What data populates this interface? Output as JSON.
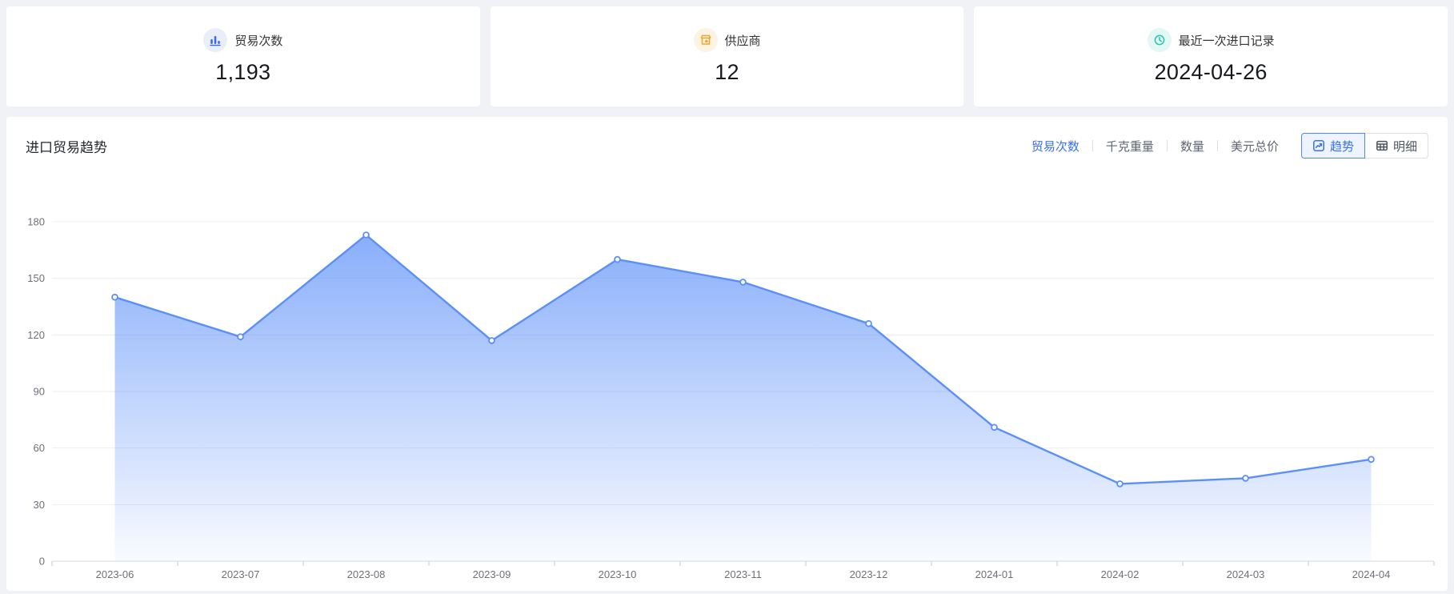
{
  "cards": [
    {
      "icon": "bar-chart-icon",
      "label": "贸易次数",
      "value": "1,193"
    },
    {
      "icon": "store-icon",
      "label": "供应商",
      "value": "12"
    },
    {
      "icon": "clock-icon",
      "label": "最近一次进口记录",
      "value": "2024-04-26"
    }
  ],
  "chart_panel": {
    "title": "进口贸易趋势",
    "metric_tabs": [
      {
        "label": "贸易次数",
        "active": true
      },
      {
        "label": "千克重量",
        "active": false
      },
      {
        "label": "数量",
        "active": false
      },
      {
        "label": "美元总价",
        "active": false
      }
    ],
    "view_toggle": [
      {
        "label": "趋势",
        "icon": "trend-icon",
        "active": true
      },
      {
        "label": "明细",
        "icon": "table-icon",
        "active": false
      }
    ]
  },
  "chart_data": {
    "type": "area",
    "title": "进口贸易趋势",
    "x": [
      "2023-06",
      "2023-07",
      "2023-08",
      "2023-09",
      "2023-10",
      "2023-11",
      "2023-12",
      "2024-01",
      "2024-02",
      "2024-03",
      "2024-04"
    ],
    "series": [
      {
        "name": "贸易次数",
        "values": [
          140,
          119,
          173,
          117,
          160,
          148,
          126,
          71,
          41,
          44,
          54
        ]
      }
    ],
    "ylim": [
      0,
      180
    ],
    "yticks": [
      0,
      30,
      60,
      90,
      120,
      150,
      180
    ],
    "grid": true,
    "legend_position": "none",
    "line_color": "#5b8ff9",
    "marker_fill": "#ffffff",
    "area_gradient_top": "rgba(91,143,249,0.72)",
    "area_gradient_bottom": "rgba(91,143,249,0.04)",
    "grid_color": "#ecedf3",
    "axis_color": "#d7dae0",
    "tick_color": "#c6cad1",
    "label_color": "#6e7079"
  },
  "colors": {
    "accent_blue": "#3a6ff2",
    "card_icon_blue": "#3a6af0",
    "card_icon_orange": "#f0a32f",
    "card_icon_teal": "#2bc3b2",
    "page_background": "#f0f2f6",
    "active_toggle_bg": "#edf4ff",
    "active_toggle_border": "#5087f3"
  }
}
